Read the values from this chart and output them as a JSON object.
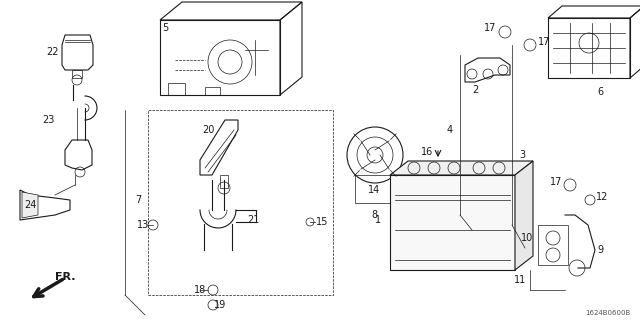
{
  "bg_color": "#ffffff",
  "line_color": "#1a1a1a",
  "watermark": "1624B0600B",
  "fig_w": 6.4,
  "fig_h": 3.2,
  "dpi": 100,
  "xlim": [
    0,
    640
  ],
  "ylim": [
    0,
    320
  ]
}
